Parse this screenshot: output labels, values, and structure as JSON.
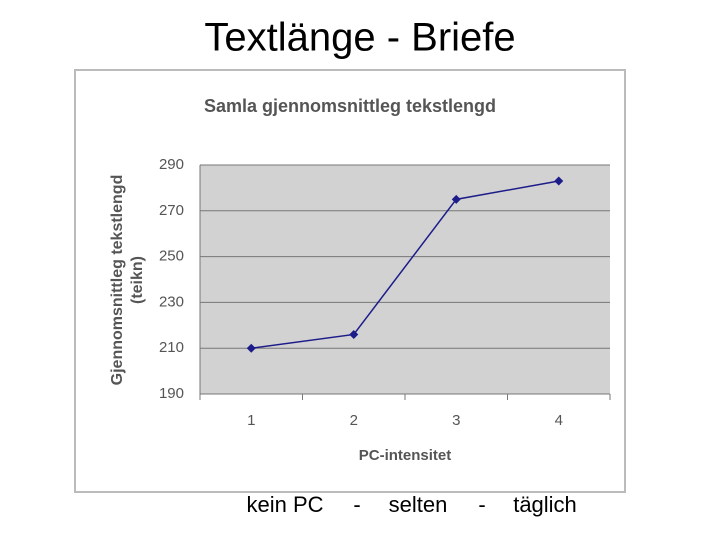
{
  "title": "Textlänge - Briefe",
  "chart_data": {
    "type": "line",
    "title": "Samla gjennomsnittleg tekstlengd",
    "ylabel": [
      "Gjennomsnittleg tekstlengd",
      "(teikn)"
    ],
    "xlabel": "PC-intensitet",
    "categories": [
      "1",
      "2",
      "3",
      "4"
    ],
    "values": [
      210,
      216,
      275,
      283
    ],
    "color": "#1c1c8a",
    "ylim": [
      190,
      290
    ],
    "yticks": [
      190,
      210,
      230,
      250,
      270,
      290
    ],
    "grid": true
  },
  "caption": [
    "kein PC",
    "-",
    "selten",
    "-",
    "täglich"
  ]
}
